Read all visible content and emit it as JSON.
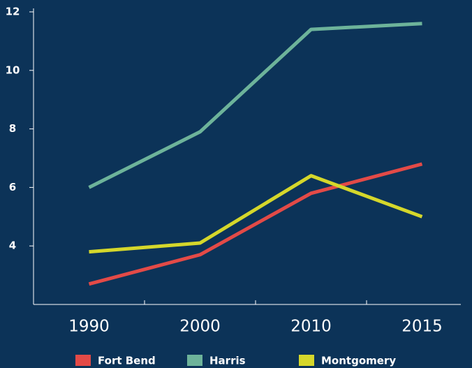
{
  "chart_data": {
    "type": "line",
    "categories": [
      "1990",
      "2000",
      "2010",
      "2015"
    ],
    "series": [
      {
        "name": "Fort Bend",
        "color": "#e34a47",
        "values": [
          2.7,
          3.7,
          5.8,
          6.8
        ]
      },
      {
        "name": "Harris",
        "color": "#6db39a",
        "values": [
          6.0,
          7.9,
          11.4,
          11.6
        ]
      },
      {
        "name": "Montgomery",
        "color": "#d5d72b",
        "values": [
          3.8,
          4.1,
          6.4,
          5.0
        ]
      }
    ],
    "ylim": [
      2,
      12
    ],
    "yticks": [
      4,
      6,
      8,
      10,
      12
    ],
    "grid": false,
    "legend": "bottom"
  }
}
